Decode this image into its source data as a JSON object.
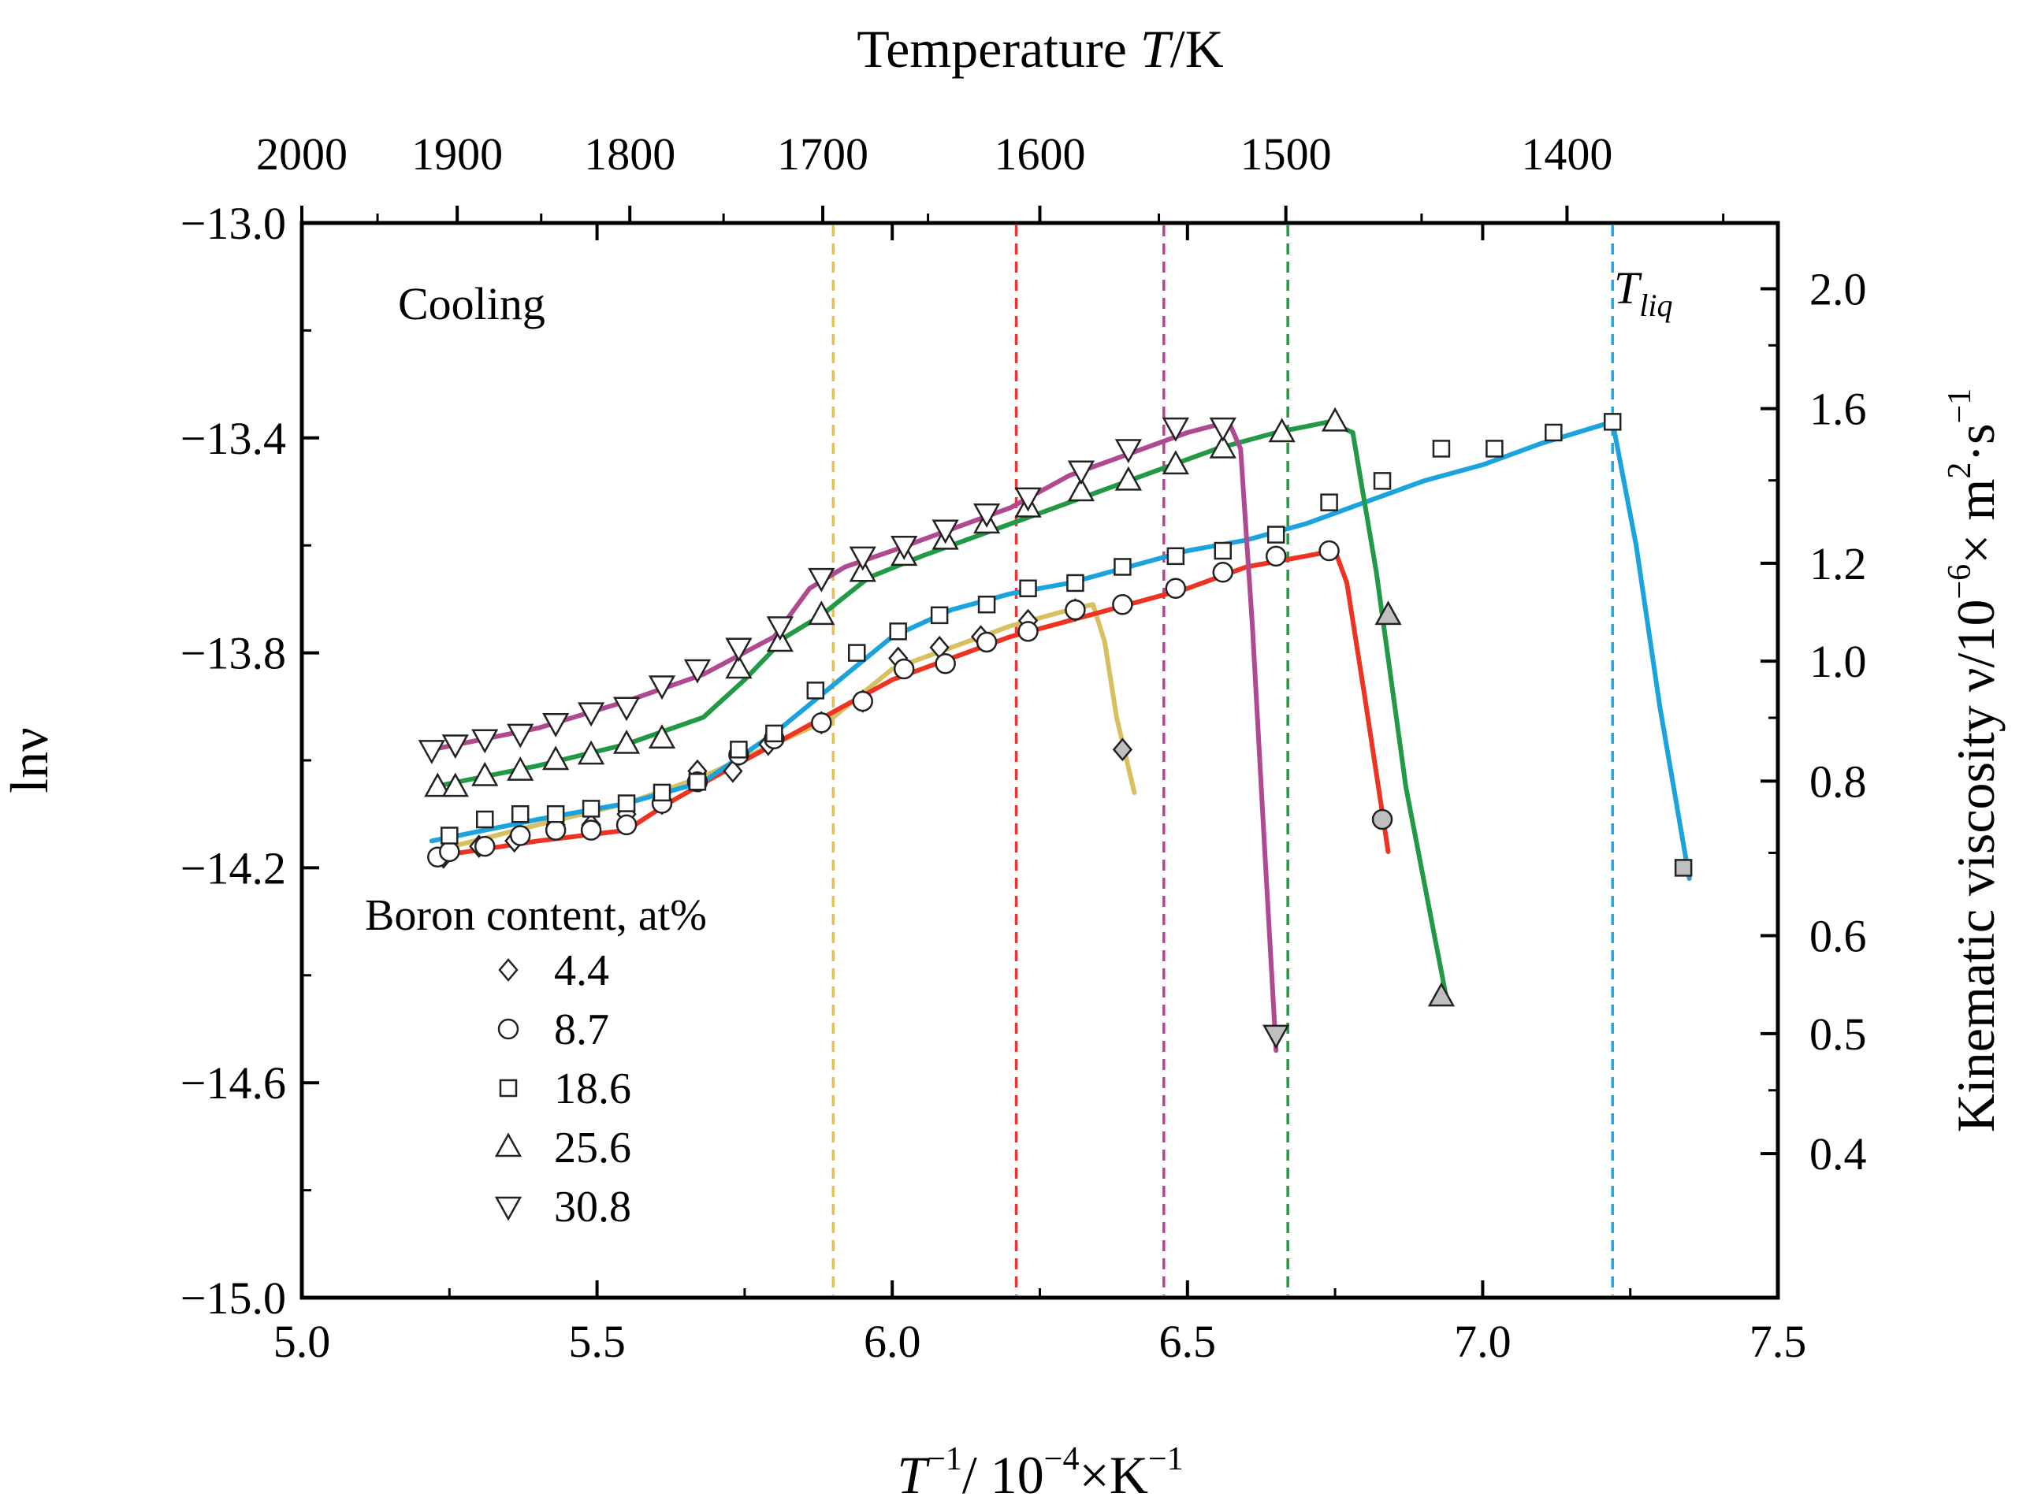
{
  "chart_data": {
    "type": "line",
    "title": "",
    "xlabel": "T⁻¹/ 10⁻⁴×K⁻¹",
    "xlabel_parts": {
      "base": "T",
      "sup1": "−1",
      "mid": "/ 10",
      "sup2": "−4",
      "mid2": "×K",
      "sup3": "−1"
    },
    "ylabel": "lnν",
    "top_xlabel_parts": {
      "pre": "Temperature ",
      "italic": "T",
      "post": "/K"
    },
    "right_ylabel_parts": {
      "pre": "Kinematic viscosity ν/10",
      "sup1": "−6",
      "mid": "× m",
      "sup2": "2",
      "mid2": "·s",
      "sup3": "−1"
    },
    "xlim": [
      5.0,
      7.5
    ],
    "ylim": [
      -15.0,
      -13.0
    ],
    "x_ticks": [
      "5.0",
      "5.5",
      "6.0",
      "6.5",
      "7.0",
      "7.5"
    ],
    "y_ticks": [
      "−13.0",
      "−13.4",
      "−13.8",
      "−14.2",
      "−14.6",
      "−15.0"
    ],
    "top_ticks_K": [
      "2000",
      "1900",
      "1800",
      "1700",
      "1600",
      "1500",
      "1400"
    ],
    "right_ticks": [
      "2.0",
      "1.6",
      "1.2",
      "1.0",
      "0.8",
      "0.6",
      "0.5",
      "0.4"
    ],
    "annotations": {
      "cooling": "Cooling",
      "tliq_base": "T",
      "tliq_sub": "liq"
    },
    "legend": {
      "title": "Boron content, at%",
      "entries": [
        "4.4",
        "8.7",
        "18.6",
        "25.6",
        "30.8"
      ]
    },
    "liquidus_lines": [
      {
        "x": 5.9,
        "color": "#e0c060"
      },
      {
        "x": 6.21,
        "color": "#ee3333"
      },
      {
        "x": 6.46,
        "color": "#c04090"
      },
      {
        "x": 6.67,
        "color": "#229944"
      },
      {
        "x": 7.22,
        "color": "#22a8e0"
      }
    ],
    "series": [
      {
        "name": "4.4",
        "marker": "diamond",
        "color": "#d6c060",
        "points": [
          [
            5.24,
            -14.18
          ],
          [
            5.3,
            -14.16
          ],
          [
            5.36,
            -14.15
          ],
          [
            5.43,
            -14.12
          ],
          [
            5.49,
            -14.12
          ],
          [
            5.55,
            -14.1
          ],
          [
            5.61,
            -14.08
          ],
          [
            5.67,
            -14.02
          ],
          [
            5.73,
            -14.02
          ],
          [
            5.79,
            -13.97
          ],
          [
            5.88,
            -13.93
          ],
          [
            5.95,
            -13.89
          ],
          [
            6.01,
            -13.81
          ],
          [
            6.08,
            -13.79
          ],
          [
            6.15,
            -13.77
          ],
          [
            6.23,
            -13.74
          ],
          [
            6.31,
            -13.72
          ]
        ],
        "post_points": [
          [
            6.39,
            -13.98
          ]
        ],
        "line": [
          [
            5.22,
            -14.17
          ],
          [
            5.4,
            -14.12
          ],
          [
            5.55,
            -14.08
          ],
          [
            5.68,
            -14.03
          ],
          [
            5.8,
            -13.97
          ],
          [
            5.9,
            -13.92
          ],
          [
            6.0,
            -13.83
          ],
          [
            6.1,
            -13.79
          ],
          [
            6.2,
            -13.75
          ],
          [
            6.3,
            -13.72
          ],
          [
            6.34,
            -13.71
          ],
          [
            6.36,
            -13.78
          ],
          [
            6.38,
            -13.92
          ],
          [
            6.41,
            -14.06
          ]
        ]
      },
      {
        "name": "8.7",
        "marker": "circle",
        "color": "#ee3322",
        "points": [
          [
            5.23,
            -14.18
          ],
          [
            5.25,
            -14.17
          ],
          [
            5.31,
            -14.16
          ],
          [
            5.37,
            -14.14
          ],
          [
            5.43,
            -14.13
          ],
          [
            5.49,
            -14.13
          ],
          [
            5.55,
            -14.12
          ],
          [
            5.61,
            -14.08
          ],
          [
            5.67,
            -14.04
          ],
          [
            5.74,
            -13.99
          ],
          [
            5.8,
            -13.96
          ],
          [
            5.88,
            -13.93
          ],
          [
            5.95,
            -13.89
          ],
          [
            6.02,
            -13.83
          ],
          [
            6.09,
            -13.82
          ],
          [
            6.16,
            -13.78
          ],
          [
            6.23,
            -13.76
          ],
          [
            6.31,
            -13.72
          ],
          [
            6.39,
            -13.71
          ],
          [
            6.48,
            -13.68
          ],
          [
            6.56,
            -13.65
          ],
          [
            6.65,
            -13.62
          ],
          [
            6.74,
            -13.61
          ]
        ],
        "post_points": [
          [
            6.83,
            -14.11
          ]
        ],
        "line": [
          [
            5.22,
            -14.18
          ],
          [
            5.4,
            -14.15
          ],
          [
            5.55,
            -14.13
          ],
          [
            5.62,
            -14.08
          ],
          [
            5.7,
            -14.03
          ],
          [
            5.8,
            -13.97
          ],
          [
            5.9,
            -13.91
          ],
          [
            6.0,
            -13.85
          ],
          [
            6.1,
            -13.81
          ],
          [
            6.2,
            -13.77
          ],
          [
            6.3,
            -13.74
          ],
          [
            6.4,
            -13.71
          ],
          [
            6.5,
            -13.68
          ],
          [
            6.6,
            -13.64
          ],
          [
            6.7,
            -13.62
          ],
          [
            6.75,
            -13.61
          ],
          [
            6.77,
            -13.67
          ],
          [
            6.8,
            -13.88
          ],
          [
            6.84,
            -14.17
          ]
        ]
      },
      {
        "name": "18.6",
        "marker": "square",
        "color": "#1aa3dd",
        "points": [
          [
            5.25,
            -14.14
          ],
          [
            5.31,
            -14.11
          ],
          [
            5.37,
            -14.1
          ],
          [
            5.43,
            -14.1
          ],
          [
            5.49,
            -14.09
          ],
          [
            5.55,
            -14.08
          ],
          [
            5.61,
            -14.06
          ],
          [
            5.67,
            -14.04
          ],
          [
            5.74,
            -13.98
          ],
          [
            5.8,
            -13.95
          ],
          [
            5.87,
            -13.87
          ],
          [
            5.94,
            -13.8
          ],
          [
            6.01,
            -13.76
          ],
          [
            6.08,
            -13.73
          ],
          [
            6.16,
            -13.71
          ],
          [
            6.23,
            -13.68
          ],
          [
            6.31,
            -13.67
          ],
          [
            6.39,
            -13.64
          ],
          [
            6.48,
            -13.62
          ],
          [
            6.56,
            -13.61
          ],
          [
            6.65,
            -13.58
          ],
          [
            6.74,
            -13.52
          ],
          [
            6.83,
            -13.48
          ],
          [
            6.93,
            -13.42
          ],
          [
            7.02,
            -13.42
          ],
          [
            7.12,
            -13.39
          ],
          [
            7.22,
            -13.37
          ]
        ],
        "post_points": [
          [
            7.34,
            -14.2
          ]
        ],
        "line": [
          [
            5.22,
            -14.15
          ],
          [
            5.4,
            -14.11
          ],
          [
            5.55,
            -14.08
          ],
          [
            5.68,
            -14.04
          ],
          [
            5.8,
            -13.95
          ],
          [
            5.9,
            -13.86
          ],
          [
            6.0,
            -13.77
          ],
          [
            6.1,
            -13.72
          ],
          [
            6.2,
            -13.69
          ],
          [
            6.3,
            -13.67
          ],
          [
            6.4,
            -13.64
          ],
          [
            6.5,
            -13.61
          ],
          [
            6.6,
            -13.59
          ],
          [
            6.7,
            -13.56
          ],
          [
            6.8,
            -13.52
          ],
          [
            6.9,
            -13.48
          ],
          [
            7.0,
            -13.45
          ],
          [
            7.1,
            -13.41
          ],
          [
            7.22,
            -13.37
          ],
          [
            7.26,
            -13.6
          ],
          [
            7.3,
            -13.9
          ],
          [
            7.35,
            -14.22
          ]
        ]
      },
      {
        "name": "25.6",
        "marker": "triangle-up",
        "color": "#229944",
        "points": [
          [
            5.23,
            -14.05
          ],
          [
            5.26,
            -14.05
          ],
          [
            5.31,
            -14.03
          ],
          [
            5.37,
            -14.02
          ],
          [
            5.43,
            -14.0
          ],
          [
            5.49,
            -13.99
          ],
          [
            5.55,
            -13.97
          ],
          [
            5.61,
            -13.96
          ],
          [
            5.74,
            -13.83
          ],
          [
            5.81,
            -13.78
          ],
          [
            5.88,
            -13.73
          ],
          [
            5.95,
            -13.65
          ],
          [
            6.02,
            -13.62
          ],
          [
            6.09,
            -13.59
          ],
          [
            6.16,
            -13.56
          ],
          [
            6.23,
            -13.53
          ],
          [
            6.32,
            -13.5
          ],
          [
            6.4,
            -13.48
          ],
          [
            6.48,
            -13.45
          ],
          [
            6.56,
            -13.42
          ],
          [
            6.66,
            -13.39
          ],
          [
            6.75,
            -13.37
          ]
        ],
        "post_points": [
          [
            6.84,
            -13.73
          ],
          [
            6.93,
            -14.44
          ]
        ],
        "line": [
          [
            5.22,
            -14.05
          ],
          [
            5.4,
            -14.01
          ],
          [
            5.55,
            -13.97
          ],
          [
            5.68,
            -13.92
          ],
          [
            5.75,
            -13.85
          ],
          [
            5.82,
            -13.77
          ],
          [
            5.88,
            -13.73
          ],
          [
            5.96,
            -13.66
          ],
          [
            6.05,
            -13.62
          ],
          [
            6.15,
            -13.58
          ],
          [
            6.25,
            -13.54
          ],
          [
            6.35,
            -13.5
          ],
          [
            6.45,
            -13.46
          ],
          [
            6.55,
            -13.42
          ],
          [
            6.65,
            -13.39
          ],
          [
            6.74,
            -13.37
          ],
          [
            6.78,
            -13.39
          ],
          [
            6.82,
            -13.65
          ],
          [
            6.87,
            -14.05
          ],
          [
            6.94,
            -14.45
          ]
        ]
      },
      {
        "name": "30.8",
        "marker": "triangle-down",
        "color": "#b04a90",
        "points": [
          [
            5.22,
            -13.98
          ],
          [
            5.26,
            -13.97
          ],
          [
            5.31,
            -13.96
          ],
          [
            5.37,
            -13.95
          ],
          [
            5.43,
            -13.93
          ],
          [
            5.49,
            -13.91
          ],
          [
            5.55,
            -13.9
          ],
          [
            5.61,
            -13.86
          ],
          [
            5.67,
            -13.83
          ],
          [
            5.74,
            -13.79
          ],
          [
            5.81,
            -13.75
          ],
          [
            5.88,
            -13.66
          ],
          [
            5.95,
            -13.62
          ],
          [
            6.02,
            -13.6
          ],
          [
            6.09,
            -13.57
          ],
          [
            6.16,
            -13.54
          ],
          [
            6.23,
            -13.51
          ],
          [
            6.32,
            -13.46
          ],
          [
            6.4,
            -13.42
          ],
          [
            6.48,
            -13.38
          ],
          [
            6.56,
            -13.38
          ]
        ],
        "post_points": [
          [
            6.65,
            -14.51
          ]
        ],
        "line": [
          [
            5.22,
            -13.98
          ],
          [
            5.4,
            -13.94
          ],
          [
            5.55,
            -13.89
          ],
          [
            5.68,
            -13.84
          ],
          [
            5.8,
            -13.77
          ],
          [
            5.86,
            -13.68
          ],
          [
            5.92,
            -13.64
          ],
          [
            6.0,
            -13.61
          ],
          [
            6.1,
            -13.57
          ],
          [
            6.2,
            -13.53
          ],
          [
            6.3,
            -13.47
          ],
          [
            6.4,
            -13.43
          ],
          [
            6.5,
            -13.39
          ],
          [
            6.57,
            -13.37
          ],
          [
            6.59,
            -13.42
          ],
          [
            6.61,
            -13.75
          ],
          [
            6.63,
            -14.15
          ],
          [
            6.65,
            -14.54
          ]
        ]
      }
    ]
  }
}
